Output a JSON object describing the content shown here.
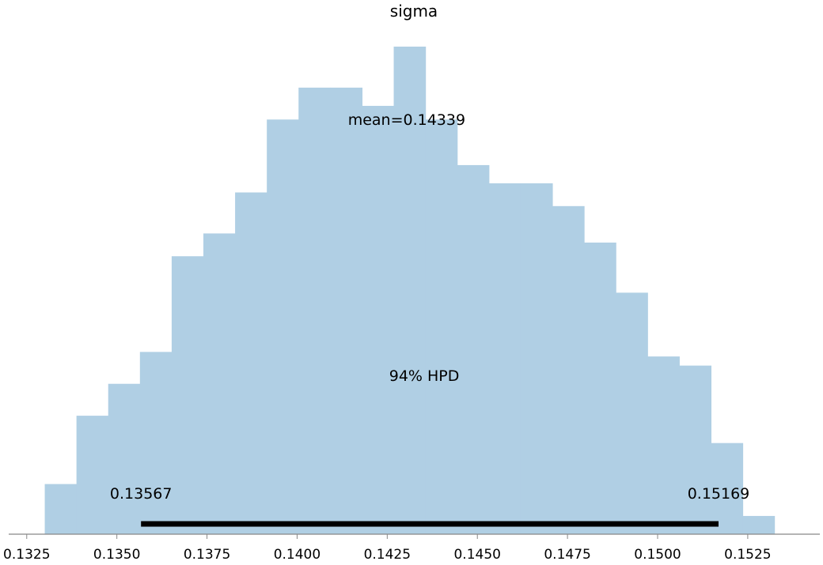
{
  "chart_data": {
    "type": "bar",
    "title": "sigma",
    "xlabel": "",
    "ylabel": "",
    "bin_edges": [
      0.133,
      0.13388,
      0.13476,
      0.13564,
      0.13652,
      0.1374,
      0.13828,
      0.13916,
      0.14004,
      0.14092,
      0.1418,
      0.14268,
      0.14356,
      0.14444,
      0.14532,
      0.1462,
      0.14708,
      0.14796,
      0.14884,
      0.14972,
      0.1506,
      0.15148,
      0.15236,
      0.15324
    ],
    "values": [
      11,
      26,
      33,
      40,
      61,
      66,
      75,
      91,
      98,
      98,
      94,
      107,
      91,
      81,
      77,
      77,
      72,
      64,
      53,
      39,
      37,
      20,
      4
    ],
    "xlim": [
      0.132,
      0.1545
    ],
    "ylim": [
      0,
      107
    ],
    "xticks": [
      "0.1325",
      "0.1350",
      "0.1375",
      "0.1400",
      "0.1425",
      "0.1450",
      "0.1475",
      "0.1500",
      "0.1525"
    ],
    "mean": 0.14339,
    "mean_label": "mean=0.14339",
    "hpd": {
      "label": "94% HPD",
      "low": 0.13567,
      "high": 0.15169,
      "low_label": "0.13567",
      "high_label": "0.15169"
    },
    "bar_color": "#b0cfe4",
    "hpd_line_color": "#000000",
    "axis_color": "#888888",
    "grid": false
  }
}
